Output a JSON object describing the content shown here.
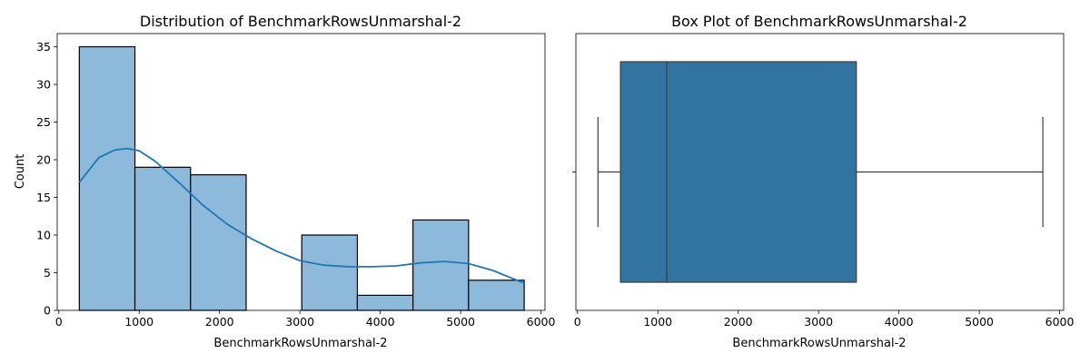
{
  "chart_data": [
    {
      "type": "bar",
      "subtype": "histogram_with_kde",
      "title": "Distribution of BenchmarkRowsUnmarshal-2",
      "xlabel": "BenchmarkRowsUnmarshal-2",
      "ylabel": "Count",
      "xlim": [
        -20,
        6050
      ],
      "ylim": [
        0,
        36.75
      ],
      "xticks": [
        0,
        1000,
        2000,
        3000,
        4000,
        5000,
        6000
      ],
      "xtick_labels": [
        "0",
        "1000",
        "2000",
        "3000",
        "4000",
        "5000",
        "6000"
      ],
      "yticks": [
        0,
        5,
        10,
        15,
        20,
        25,
        30,
        35
      ],
      "ytick_labels": [
        "0",
        "5",
        "10",
        "15",
        "20",
        "25",
        "30",
        "35"
      ],
      "bins": [
        {
          "start": 255,
          "end": 947,
          "count": 35
        },
        {
          "start": 947,
          "end": 1639,
          "count": 19
        },
        {
          "start": 1639,
          "end": 2331,
          "count": 18
        },
        {
          "start": 2331,
          "end": 3023,
          "count": 0
        },
        {
          "start": 3023,
          "end": 3715,
          "count": 10
        },
        {
          "start": 3715,
          "end": 4407,
          "count": 2
        },
        {
          "start": 4407,
          "end": 5099,
          "count": 12
        },
        {
          "start": 5099,
          "end": 5791,
          "count": 4
        }
      ],
      "kde": {
        "x": [
          255,
          500,
          700,
          850,
          1000,
          1200,
          1500,
          1800,
          2100,
          2400,
          2700,
          3000,
          3300,
          3600,
          3900,
          4200,
          4500,
          4800,
          5100,
          5400,
          5791
        ],
        "y": [
          17.0,
          20.3,
          21.3,
          21.5,
          21.2,
          19.8,
          16.9,
          13.9,
          11.4,
          9.5,
          7.9,
          6.6,
          6.0,
          5.8,
          5.8,
          5.9,
          6.3,
          6.5,
          6.2,
          5.3,
          3.6
        ]
      },
      "colors": {
        "bar_fill": "#8dbadb",
        "bar_edge": "#000000",
        "kde_line": "#1f77b4"
      },
      "grid": false
    },
    {
      "type": "boxplot",
      "title": "Box Plot of BenchmarkRowsUnmarshal-2",
      "xlabel": "BenchmarkRowsUnmarshal-2",
      "ylabel": "",
      "xlim": [
        -20,
        6050
      ],
      "xticks": [
        0,
        1000,
        2000,
        3000,
        4000,
        5000,
        6000
      ],
      "xtick_labels": [
        "0",
        "1000",
        "2000",
        "3000",
        "4000",
        "5000",
        "6000"
      ],
      "stats": {
        "whisker_low": 255,
        "q1": 535,
        "median": 1110,
        "q3": 3470,
        "whisker_high": 5791
      },
      "colors": {
        "box_fill": "#3274a1",
        "lines": "#3d3d3d"
      },
      "grid": false
    }
  ]
}
